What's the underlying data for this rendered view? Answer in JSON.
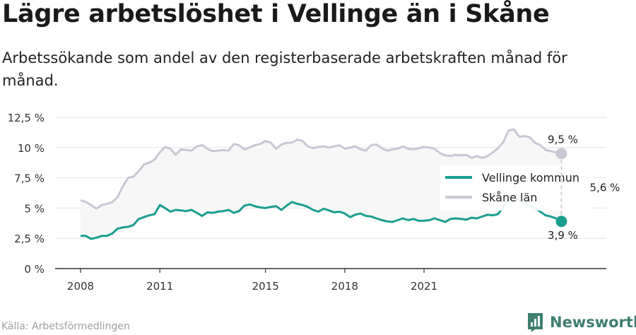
{
  "title": "Lägre arbetslöshet i Vellinge än i Skåne",
  "subtitle": "Arbetssökande som andel av den registerbaserade arbetskraften månad för månad.",
  "source": "Källa: Arbetsförmedlingen",
  "brand": "Newsworthy",
  "colors": {
    "vellinge": "#1a9e8f",
    "skane": "#c8c8d4",
    "gap_fill": "#f7f7f7",
    "grid": "#e2e2e2",
    "axis": "#333333"
  },
  "chart_data": {
    "type": "line",
    "ylim": [
      0,
      12.5
    ],
    "yticks": [
      0,
      2.5,
      5,
      7.5,
      10,
      12.5
    ],
    "ytick_labels": [
      "0 %",
      "2,5 %",
      "5 %",
      "7,5 %",
      "10 %",
      "12,5 %"
    ],
    "xticks": [
      2008,
      2011,
      2015,
      2018,
      2021
    ],
    "xtick_labels": [
      "2008",
      "2011",
      "2015",
      "2018",
      "2021"
    ],
    "grid": true,
    "legend_position": "right",
    "series": [
      {
        "name": "Vellinge kommun",
        "color": "#1a9e8f",
        "points": [
          [
            2008.0,
            2.7
          ],
          [
            2008.2,
            2.7
          ],
          [
            2008.4,
            2.45
          ],
          [
            2008.6,
            2.55
          ],
          [
            2008.8,
            2.7
          ],
          [
            2009.0,
            2.7
          ],
          [
            2009.2,
            2.9
          ],
          [
            2009.4,
            3.3
          ],
          [
            2009.6,
            3.4
          ],
          [
            2009.8,
            3.45
          ],
          [
            2010.0,
            3.6
          ],
          [
            2010.2,
            4.1
          ],
          [
            2010.4,
            4.25
          ],
          [
            2010.6,
            4.4
          ],
          [
            2010.8,
            4.5
          ],
          [
            2011.0,
            5.25
          ],
          [
            2011.2,
            5.0
          ],
          [
            2011.4,
            4.7
          ],
          [
            2011.6,
            4.85
          ],
          [
            2011.8,
            4.8
          ],
          [
            2012.0,
            4.75
          ],
          [
            2012.2,
            4.85
          ],
          [
            2012.4,
            4.6
          ],
          [
            2012.6,
            4.35
          ],
          [
            2012.8,
            4.65
          ],
          [
            2013.0,
            4.6
          ],
          [
            2013.2,
            4.7
          ],
          [
            2013.4,
            4.75
          ],
          [
            2013.6,
            4.85
          ],
          [
            2013.8,
            4.6
          ],
          [
            2014.0,
            4.75
          ],
          [
            2014.2,
            5.2
          ],
          [
            2014.4,
            5.3
          ],
          [
            2014.6,
            5.15
          ],
          [
            2014.8,
            5.05
          ],
          [
            2015.0,
            5.0
          ],
          [
            2015.2,
            5.1
          ],
          [
            2015.4,
            5.15
          ],
          [
            2015.6,
            4.85
          ],
          [
            2015.8,
            5.2
          ],
          [
            2016.0,
            5.5
          ],
          [
            2016.2,
            5.35
          ],
          [
            2016.4,
            5.25
          ],
          [
            2016.6,
            5.1
          ],
          [
            2016.8,
            4.85
          ],
          [
            2017.0,
            4.7
          ],
          [
            2017.2,
            4.95
          ],
          [
            2017.4,
            4.8
          ],
          [
            2017.6,
            4.65
          ],
          [
            2017.8,
            4.7
          ],
          [
            2018.0,
            4.55
          ],
          [
            2018.2,
            4.25
          ],
          [
            2018.4,
            4.45
          ],
          [
            2018.6,
            4.55
          ],
          [
            2018.8,
            4.35
          ],
          [
            2019.0,
            4.3
          ],
          [
            2019.2,
            4.15
          ],
          [
            2019.4,
            4.0
          ],
          [
            2019.6,
            3.9
          ],
          [
            2019.8,
            3.85
          ],
          [
            2020.0,
            4.0
          ],
          [
            2020.2,
            4.15
          ],
          [
            2020.4,
            4.0
          ],
          [
            2020.6,
            4.1
          ],
          [
            2020.8,
            3.95
          ],
          [
            2021.0,
            3.95
          ],
          [
            2021.2,
            4.0
          ],
          [
            2021.4,
            4.15
          ],
          [
            2021.6,
            4.0
          ],
          [
            2021.8,
            3.85
          ],
          [
            2022.0,
            4.1
          ],
          [
            2022.2,
            4.15
          ],
          [
            2022.4,
            4.1
          ],
          [
            2022.6,
            4.05
          ],
          [
            2022.8,
            4.2
          ],
          [
            2023.0,
            4.15
          ],
          [
            2023.2,
            4.3
          ],
          [
            2023.4,
            4.45
          ],
          [
            2023.6,
            4.4
          ],
          [
            2023.8,
            4.5
          ],
          [
            2024.0,
            5.1
          ],
          [
            2024.2,
            5.7
          ],
          [
            2024.4,
            5.9
          ],
          [
            2024.6,
            5.6
          ],
          [
            2024.8,
            5.4
          ],
          [
            2025.0,
            5.2
          ],
          [
            2025.2,
            5.0
          ],
          [
            2025.4,
            4.7
          ],
          [
            2025.6,
            4.4
          ],
          [
            2025.8,
            4.3
          ],
          [
            2026.0,
            4.15
          ],
          [
            2026.2,
            3.9
          ]
        ]
      },
      {
        "name": "Skåne län",
        "color": "#c8c8d4",
        "points": [
          [
            2008.0,
            5.65
          ],
          [
            2008.2,
            5.5
          ],
          [
            2008.4,
            5.25
          ],
          [
            2008.6,
            4.95
          ],
          [
            2008.8,
            5.25
          ],
          [
            2009.0,
            5.35
          ],
          [
            2009.2,
            5.5
          ],
          [
            2009.4,
            5.9
          ],
          [
            2009.6,
            6.8
          ],
          [
            2009.8,
            7.5
          ],
          [
            2010.0,
            7.6
          ],
          [
            2010.2,
            8.05
          ],
          [
            2010.4,
            8.6
          ],
          [
            2010.6,
            8.75
          ],
          [
            2010.8,
            9.0
          ],
          [
            2011.0,
            9.6
          ],
          [
            2011.2,
            10.05
          ],
          [
            2011.4,
            9.9
          ],
          [
            2011.6,
            9.4
          ],
          [
            2011.8,
            9.85
          ],
          [
            2012.0,
            9.8
          ],
          [
            2012.2,
            9.75
          ],
          [
            2012.4,
            10.1
          ],
          [
            2012.6,
            10.2
          ],
          [
            2012.8,
            9.9
          ],
          [
            2013.0,
            9.7
          ],
          [
            2013.2,
            9.75
          ],
          [
            2013.4,
            9.8
          ],
          [
            2013.6,
            9.75
          ],
          [
            2013.8,
            10.3
          ],
          [
            2014.0,
            10.2
          ],
          [
            2014.2,
            9.85
          ],
          [
            2014.4,
            10.0
          ],
          [
            2014.6,
            10.2
          ],
          [
            2014.8,
            10.3
          ],
          [
            2015.0,
            10.55
          ],
          [
            2015.2,
            10.4
          ],
          [
            2015.4,
            9.9
          ],
          [
            2015.6,
            10.25
          ],
          [
            2015.8,
            10.4
          ],
          [
            2016.0,
            10.4
          ],
          [
            2016.2,
            10.65
          ],
          [
            2016.4,
            10.55
          ],
          [
            2016.6,
            10.1
          ],
          [
            2016.8,
            9.95
          ],
          [
            2017.0,
            10.05
          ],
          [
            2017.2,
            10.1
          ],
          [
            2017.4,
            10.0
          ],
          [
            2017.6,
            10.1
          ],
          [
            2017.8,
            10.2
          ],
          [
            2018.0,
            9.9
          ],
          [
            2018.2,
            10.0
          ],
          [
            2018.4,
            10.1
          ],
          [
            2018.6,
            9.85
          ],
          [
            2018.8,
            9.75
          ],
          [
            2019.0,
            10.2
          ],
          [
            2019.2,
            10.25
          ],
          [
            2019.4,
            9.95
          ],
          [
            2019.6,
            9.75
          ],
          [
            2019.8,
            9.85
          ],
          [
            2020.0,
            9.9
          ],
          [
            2020.2,
            10.1
          ],
          [
            2020.4,
            9.9
          ],
          [
            2020.6,
            9.85
          ],
          [
            2020.8,
            9.95
          ],
          [
            2021.0,
            10.05
          ],
          [
            2021.2,
            10.0
          ],
          [
            2021.4,
            9.9
          ],
          [
            2021.6,
            9.55
          ],
          [
            2021.8,
            9.35
          ],
          [
            2022.0,
            9.3
          ],
          [
            2022.2,
            9.4
          ],
          [
            2022.4,
            9.35
          ],
          [
            2022.6,
            9.4
          ],
          [
            2022.8,
            9.15
          ],
          [
            2023.0,
            9.3
          ],
          [
            2023.2,
            9.15
          ],
          [
            2023.4,
            9.3
          ],
          [
            2023.6,
            9.6
          ],
          [
            2023.8,
            9.95
          ],
          [
            2024.0,
            10.45
          ],
          [
            2024.2,
            11.4
          ],
          [
            2024.4,
            11.5
          ],
          [
            2024.6,
            10.9
          ],
          [
            2024.8,
            10.95
          ],
          [
            2025.0,
            10.85
          ],
          [
            2025.2,
            10.4
          ],
          [
            2025.4,
            10.2
          ],
          [
            2025.6,
            9.8
          ],
          [
            2025.8,
            9.7
          ],
          [
            2026.0,
            9.6
          ],
          [
            2026.2,
            9.5
          ]
        ]
      }
    ],
    "annotations": {
      "end_skane": "9,5 %",
      "end_vellinge": "3,9 %",
      "gap": "5,6 %"
    }
  }
}
